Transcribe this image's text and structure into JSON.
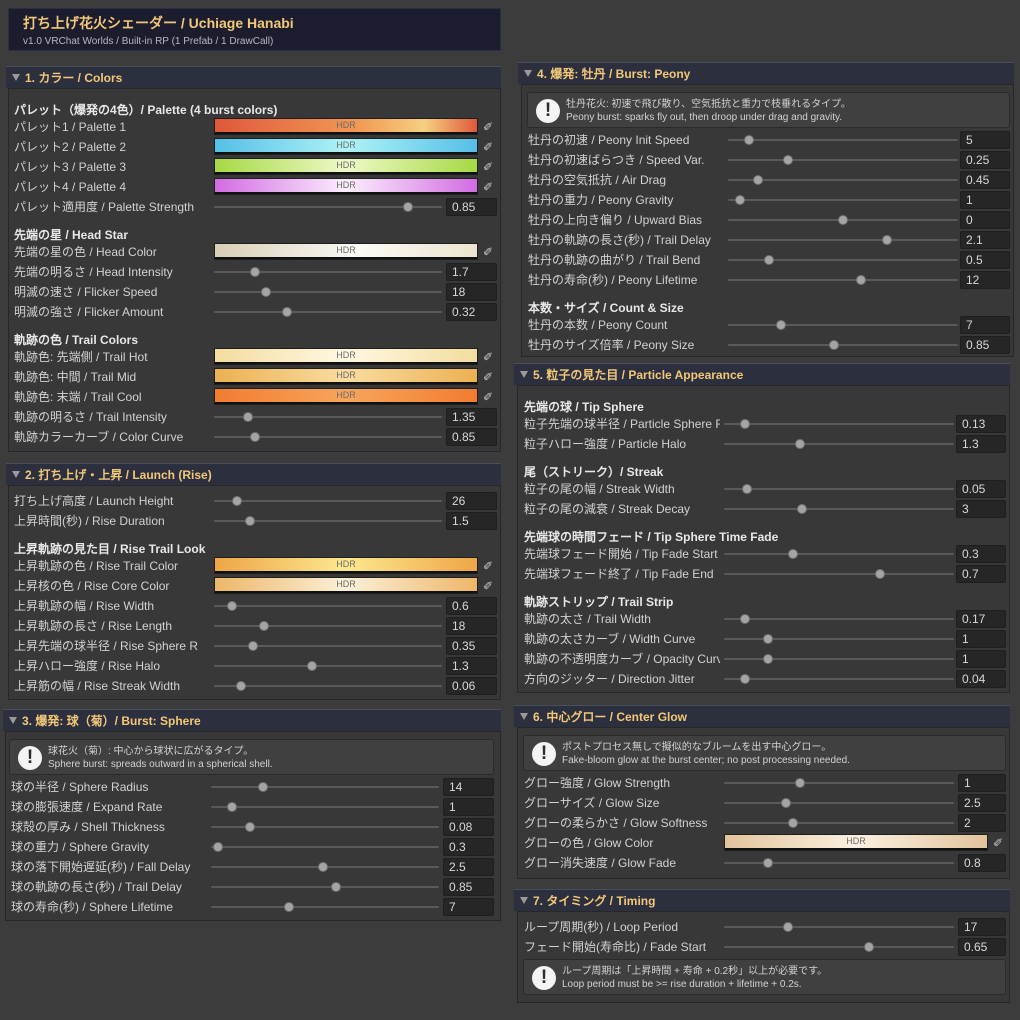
{
  "header": {
    "title": "打ち上げ花火シェーダー  /  Uchiage Hanabi",
    "subtitle": "v1.0   VRChat Worlds   /   Built-in RP   (1 Prefab / 1 DrawCall)"
  },
  "hdr_label": "HDR",
  "sections": {
    "colors": {
      "title": "1. カラー / Colors",
      "palette_group": "パレット（爆発の4色）/ Palette (4 burst colors)",
      "palette1": {
        "label": "パレット1 / Palette 1"
      },
      "palette2": {
        "label": "パレット2 / Palette 2"
      },
      "palette3": {
        "label": "パレット3 / Palette 3"
      },
      "palette4": {
        "label": "パレット4 / Palette 4"
      },
      "palette_strength": {
        "label": "パレット適用度 / Palette Strength",
        "value": "0.85",
        "fraction": 0.85
      },
      "head_group": "先端の星 / Head Star",
      "head_color": {
        "label": "先端の星の色 / Head Color"
      },
      "head_intensity": {
        "label": "先端の明るさ / Head Intensity",
        "value": "1.7",
        "fraction": 0.18
      },
      "flicker_speed": {
        "label": "明滅の速さ / Flicker Speed",
        "value": "18",
        "fraction": 0.23
      },
      "flicker_amount": {
        "label": "明滅の強さ / Flicker Amount",
        "value": "0.32",
        "fraction": 0.32
      },
      "trail_group": "軌跡の色 / Trail Colors",
      "trail_hot": {
        "label": "軌跡色: 先端側 / Trail Hot"
      },
      "trail_mid": {
        "label": "軌跡色: 中間 / Trail Mid"
      },
      "trail_cool": {
        "label": "軌跡色: 末端 / Trail Cool"
      },
      "trail_intensity": {
        "label": "軌跡の明るさ / Trail Intensity",
        "value": "1.35",
        "fraction": 0.15
      },
      "color_curve": {
        "label": "軌跡カラーカーブ / Color Curve",
        "value": "0.85",
        "fraction": 0.18
      }
    },
    "launch": {
      "title": "2. 打ち上げ・上昇 / Launch (Rise)",
      "launch_height": {
        "label": "打ち上げ高度 / Launch Height",
        "value": "26",
        "fraction": 0.1
      },
      "rise_duration": {
        "label": "上昇時間(秒) / Rise Duration",
        "value": "1.5",
        "fraction": 0.16
      },
      "rise_look_group": "上昇軌跡の見た目 / Rise Trail Look",
      "rise_trail_color": {
        "label": "上昇軌跡の色 / Rise Trail Color"
      },
      "rise_core_color": {
        "label": "上昇核の色 / Rise Core Color"
      },
      "rise_width": {
        "label": "上昇軌跡の幅 / Rise Width",
        "value": "0.6",
        "fraction": 0.08
      },
      "rise_length": {
        "label": "上昇軌跡の長さ / Rise Length",
        "value": "18",
        "fraction": 0.22
      },
      "rise_sphere_r": {
        "label": "上昇先端の球半径 / Rise Sphere R",
        "value": "0.35",
        "fraction": 0.17
      },
      "rise_halo": {
        "label": "上昇ハロー強度 / Rise Halo",
        "value": "1.3",
        "fraction": 0.43
      },
      "rise_streak_width": {
        "label": "上昇筋の幅 / Rise Streak Width",
        "value": "0.06",
        "fraction": 0.12
      }
    },
    "sphere": {
      "title": "3. 爆発: 球（菊）/ Burst: Sphere",
      "help_ja": "球花火（菊）: 中心から球状に広がるタイプ。",
      "help_en": "Sphere burst: spreads outward in a spherical shell.",
      "sphere_radius": {
        "label": "球の半径 / Sphere Radius",
        "value": "14",
        "fraction": 0.23
      },
      "expand_rate": {
        "label": "球の膨張速度 / Expand Rate",
        "value": "1",
        "fraction": 0.09
      },
      "shell_thickness": {
        "label": "球殻の厚み / Shell Thickness",
        "value": "0.08",
        "fraction": 0.17
      },
      "sphere_gravity": {
        "label": "球の重力 / Sphere Gravity",
        "value": "0.3",
        "fraction": 0.03
      },
      "fall_delay": {
        "label": "球の落下開始遅延(秒) / Fall Delay",
        "value": "2.5",
        "fraction": 0.49
      },
      "trail_delay": {
        "label": "球の軌跡の長さ(秒) / Trail Delay",
        "value": "0.85",
        "fraction": 0.55
      },
      "sphere_lifetime": {
        "label": "球の寿命(秒) / Sphere Lifetime",
        "value": "7",
        "fraction": 0.34
      }
    },
    "peony": {
      "title": "4. 爆発: 牡丹 / Burst: Peony",
      "help_ja": "牡丹花火: 初速で飛び散り、空気抵抗と重力で枝垂れるタイプ。",
      "help_en": "Peony burst: sparks fly out, then droop under drag and gravity.",
      "init_speed": {
        "label": "牡丹の初速 / Peony Init Speed",
        "value": "5",
        "fraction": 0.09
      },
      "speed_var": {
        "label": "牡丹の初速ばらつき / Speed Var.",
        "value": "0.25",
        "fraction": 0.26
      },
      "air_drag": {
        "label": "牡丹の空気抵抗 / Air Drag",
        "value": "0.45",
        "fraction": 0.13
      },
      "peony_gravity": {
        "label": "牡丹の重力 / Peony Gravity",
        "value": "1",
        "fraction": 0.05
      },
      "upward_bias": {
        "label": "牡丹の上向き偏り / Upward Bias",
        "value": "0",
        "fraction": 0.5
      },
      "trail_delay": {
        "label": "牡丹の軌跡の長さ(秒) / Trail Delay",
        "value": "2.1",
        "fraction": 0.69
      },
      "trail_bend": {
        "label": "牡丹の軌跡の曲がり / Trail Bend",
        "value": "0.5",
        "fraction": 0.18
      },
      "peony_lifetime": {
        "label": "牡丹の寿命(秒) / Peony Lifetime",
        "value": "12",
        "fraction": 0.58
      },
      "count_group": "本数・サイズ / Count & Size",
      "peony_count": {
        "label": "牡丹の本数 / Peony Count",
        "value": "7",
        "fraction": 0.23
      },
      "peony_size": {
        "label": "牡丹のサイズ倍率 / Peony Size",
        "value": "0.85",
        "fraction": 0.46
      }
    },
    "particle": {
      "title": "5. 粒子の見た目 / Particle Appearance",
      "tip_group": "先端の球 / Tip Sphere",
      "particle_sphere_r": {
        "label": "粒子先端の球半径 / Particle Sphere R",
        "value": "0.13",
        "fraction": 0.09
      },
      "particle_halo": {
        "label": "粒子ハロー強度 / Particle Halo",
        "value": "1.3",
        "fraction": 0.33
      },
      "streak_group": "尾（ストリーク）/ Streak",
      "streak_width": {
        "label": "粒子の尾の幅 / Streak Width",
        "value": "0.05",
        "fraction": 0.1
      },
      "streak_decay": {
        "label": "粒子の尾の減衰 / Streak Decay",
        "value": "3",
        "fraction": 0.34
      },
      "fade_group": "先端球の時間フェード / Tip Sphere Time Fade",
      "tip_fade_start": {
        "label": "先端球フェード開始 / Tip Fade Start",
        "value": "0.3",
        "fraction": 0.3
      },
      "tip_fade_end": {
        "label": "先端球フェード終了 / Tip Fade End",
        "value": "0.7",
        "fraction": 0.68
      },
      "strip_group": "軌跡ストリップ / Trail Strip",
      "trail_width": {
        "label": "軌跡の太さ / Trail Width",
        "value": "0.17",
        "fraction": 0.09
      },
      "width_curve": {
        "label": "軌跡の太さカーブ / Width Curve",
        "value": "1",
        "fraction": 0.19
      },
      "opacity_curve": {
        "label": "軌跡の不透明度カーブ / Opacity Curve",
        "value": "1",
        "fraction": 0.19
      },
      "direction_jitter": {
        "label": "方向のジッター / Direction Jitter",
        "value": "0.04",
        "fraction": 0.09
      }
    },
    "glow": {
      "title": "6. 中心グロー / Center Glow",
      "help_ja": "ポストプロセス無しで擬似的なブルームを出す中心グロー。",
      "help_en": "Fake-bloom glow at the burst center; no post processing needed.",
      "glow_strength": {
        "label": "グロー強度 / Glow Strength",
        "value": "1",
        "fraction": 0.33
      },
      "glow_size": {
        "label": "グローサイズ / Glow Size",
        "value": "2.5",
        "fraction": 0.27
      },
      "glow_softness": {
        "label": "グローの柔らかさ / Glow Softness",
        "value": "2",
        "fraction": 0.3
      },
      "glow_color": {
        "label": "グローの色 / Glow Color"
      },
      "glow_fade": {
        "label": "グロー消失速度 / Glow Fade",
        "value": "0.8",
        "fraction": 0.19
      }
    },
    "timing": {
      "title": "7. タイミング / Timing",
      "loop_period": {
        "label": "ループ周期(秒) / Loop Period",
        "value": "17",
        "fraction": 0.28
      },
      "fade_start": {
        "label": "フェード開始(寿命比) / Fade Start",
        "value": "0.65",
        "fraction": 0.63
      },
      "help_ja": "ループ周期は「上昇時間 + 寿命 + 0.2秒」以上が必要です。",
      "help_en": "Loop period must be >= rise duration + lifetime + 0.2s."
    }
  },
  "colors": {
    "accent": "#f2c878",
    "palette1": "linear-gradient(90deg,#e0583a,#f29a56 55%,#f5d081 80%,#e0583a)",
    "palette2": "linear-gradient(90deg,#55bfe7,#aef3f6 50%,#55bfe7)",
    "palette3": "linear-gradient(90deg,#a6d943,#eef9c8 50%,#a6d943)",
    "palette4": "linear-gradient(90deg,#d26ce2,#fbeefd 50%,#d26ce2)",
    "head_color": "linear-gradient(90deg,#d8cfb6,#fbfaf6 55%,#ece4cf)",
    "trail_hot": "linear-gradient(90deg,#f3dd9e,#fff8e2 50%,#f3dd9e)",
    "trail_mid": "linear-gradient(90deg,#ecb152,#f9dca0 50%,#ecb152)",
    "trail_cool": "linear-gradient(90deg,#f27c30,#f7a55c 50%,#f27c30)",
    "rise_trail_color": "linear-gradient(90deg,#eea647,#fde88e 50%,#eea647)",
    "rise_core_color": "linear-gradient(90deg,#edb769,#fbf0d8 50%,#edb769)",
    "glow_color": "linear-gradient(90deg,#e3c49c,#faf0df 50%,#e3c49c)"
  }
}
